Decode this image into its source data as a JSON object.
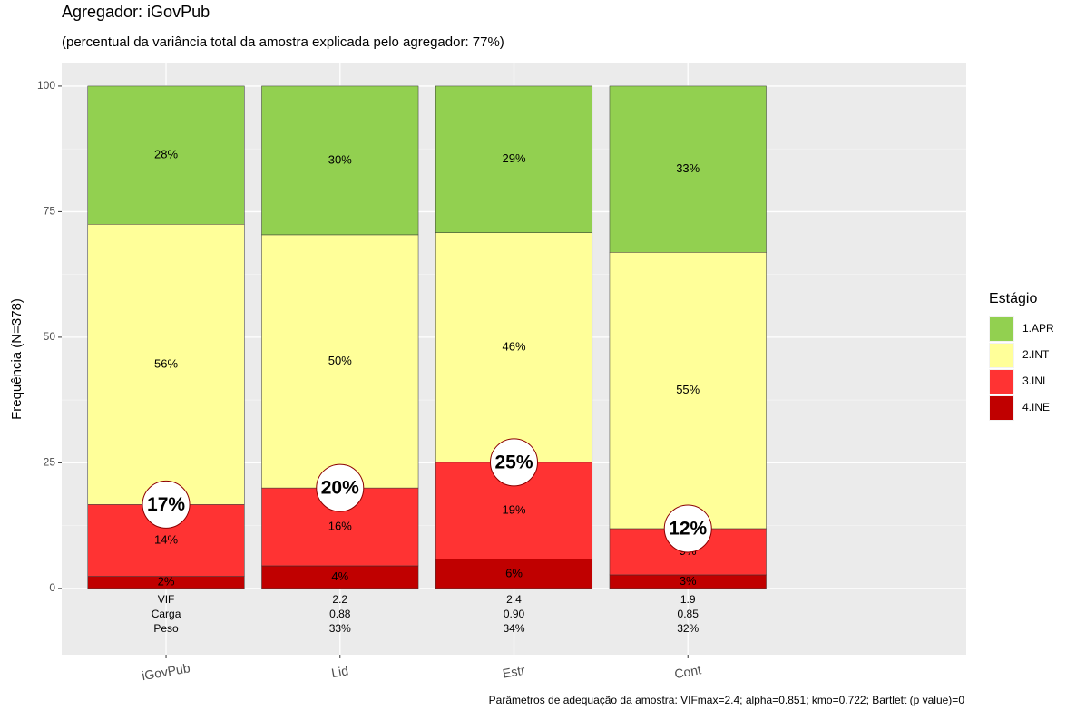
{
  "chart_data": {
    "type": "stacked_bar",
    "title": "Agregador: iGovPub",
    "subtitle": "(percentual da variância total da amostra explicada pelo agregador: 77%)",
    "y_label": "Frequência (N=378)",
    "caption": "Parâmetros de adequação da amostra: VIFmax=2.4; alpha=0.851; kmo=0.722; Bartlett (p value)=0",
    "categories": [
      "iGovPub",
      "Lid",
      "Estr",
      "Cont"
    ],
    "legend_title": "Estágio",
    "legend_position": "right",
    "grid": true,
    "ylim": [
      -13.2,
      104.5
    ],
    "yticks": [
      0,
      25,
      50,
      75,
      100
    ],
    "series": [
      {
        "name": "4.INE",
        "color": "#c00000",
        "values": [
          2.4,
          4.5,
          5.8,
          2.7
        ],
        "value_labels": [
          "2%",
          "4%",
          "6%",
          "3%"
        ]
      },
      {
        "name": "3.INI",
        "color": "#ff3333",
        "values": [
          14.3,
          15.5,
          19.3,
          9.2
        ],
        "value_labels": [
          "14%",
          "16%",
          "19%",
          "9%"
        ]
      },
      {
        "name": "2.INT",
        "color": "#ffff99",
        "values": [
          55.8,
          50.4,
          45.7,
          55.0
        ],
        "value_labels": [
          "56%",
          "50%",
          "46%",
          "55%"
        ]
      },
      {
        "name": "1.APR",
        "color": "#92d050",
        "values": [
          27.5,
          29.6,
          29.2,
          33.1
        ],
        "value_labels": [
          "28%",
          "30%",
          "29%",
          "33%"
        ]
      }
    ],
    "circle_labels": [
      "17%",
      "20%",
      "25%",
      "12%"
    ],
    "table": [
      [
        "VIF",
        "Carga",
        "Peso"
      ],
      [
        "2.2",
        "0.88",
        "33%"
      ],
      [
        "2.4",
        "0.90",
        "34%"
      ],
      [
        "1.9",
        "0.85",
        "32%"
      ]
    ]
  }
}
